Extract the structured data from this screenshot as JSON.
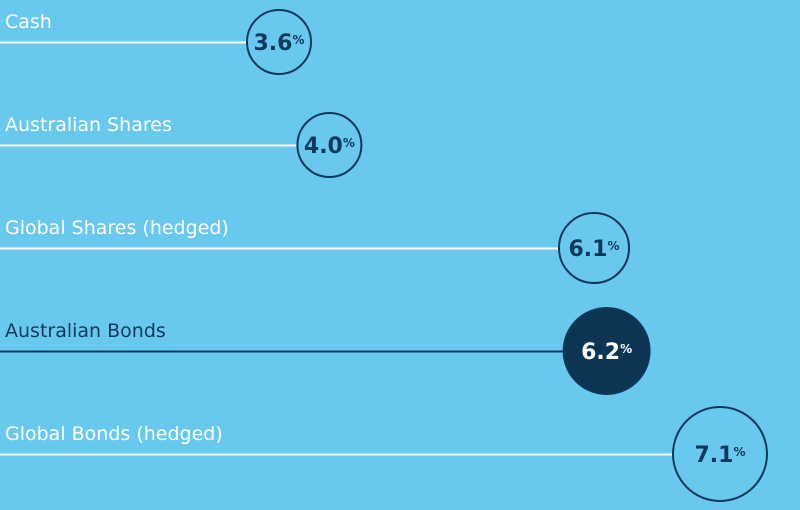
{
  "chart_data": {
    "type": "bar",
    "title": "",
    "xlabel": "",
    "ylabel": "",
    "categories": [
      "Cash",
      "Australian Shares",
      "Global Shares (hedged)",
      "Australian Bonds",
      "Global Bonds (hedged)"
    ],
    "values": [
      3.6,
      4.0,
      6.1,
      6.2,
      7.1
    ],
    "value_labels": [
      "3.6",
      "4.0",
      "6.1",
      "6.2",
      "7.1"
    ],
    "unit": "%",
    "highlight": "Australian Bonds",
    "grid": false,
    "legend": "none"
  },
  "colors": {
    "background": "#68c8ee",
    "line": "#ffffff",
    "circle_stroke": "#0b3a5c",
    "text_dark": "#0b3a5c",
    "label_light": "#ffffff",
    "highlight_fill": "#0b3553",
    "highlight_text": "#ffffff"
  }
}
